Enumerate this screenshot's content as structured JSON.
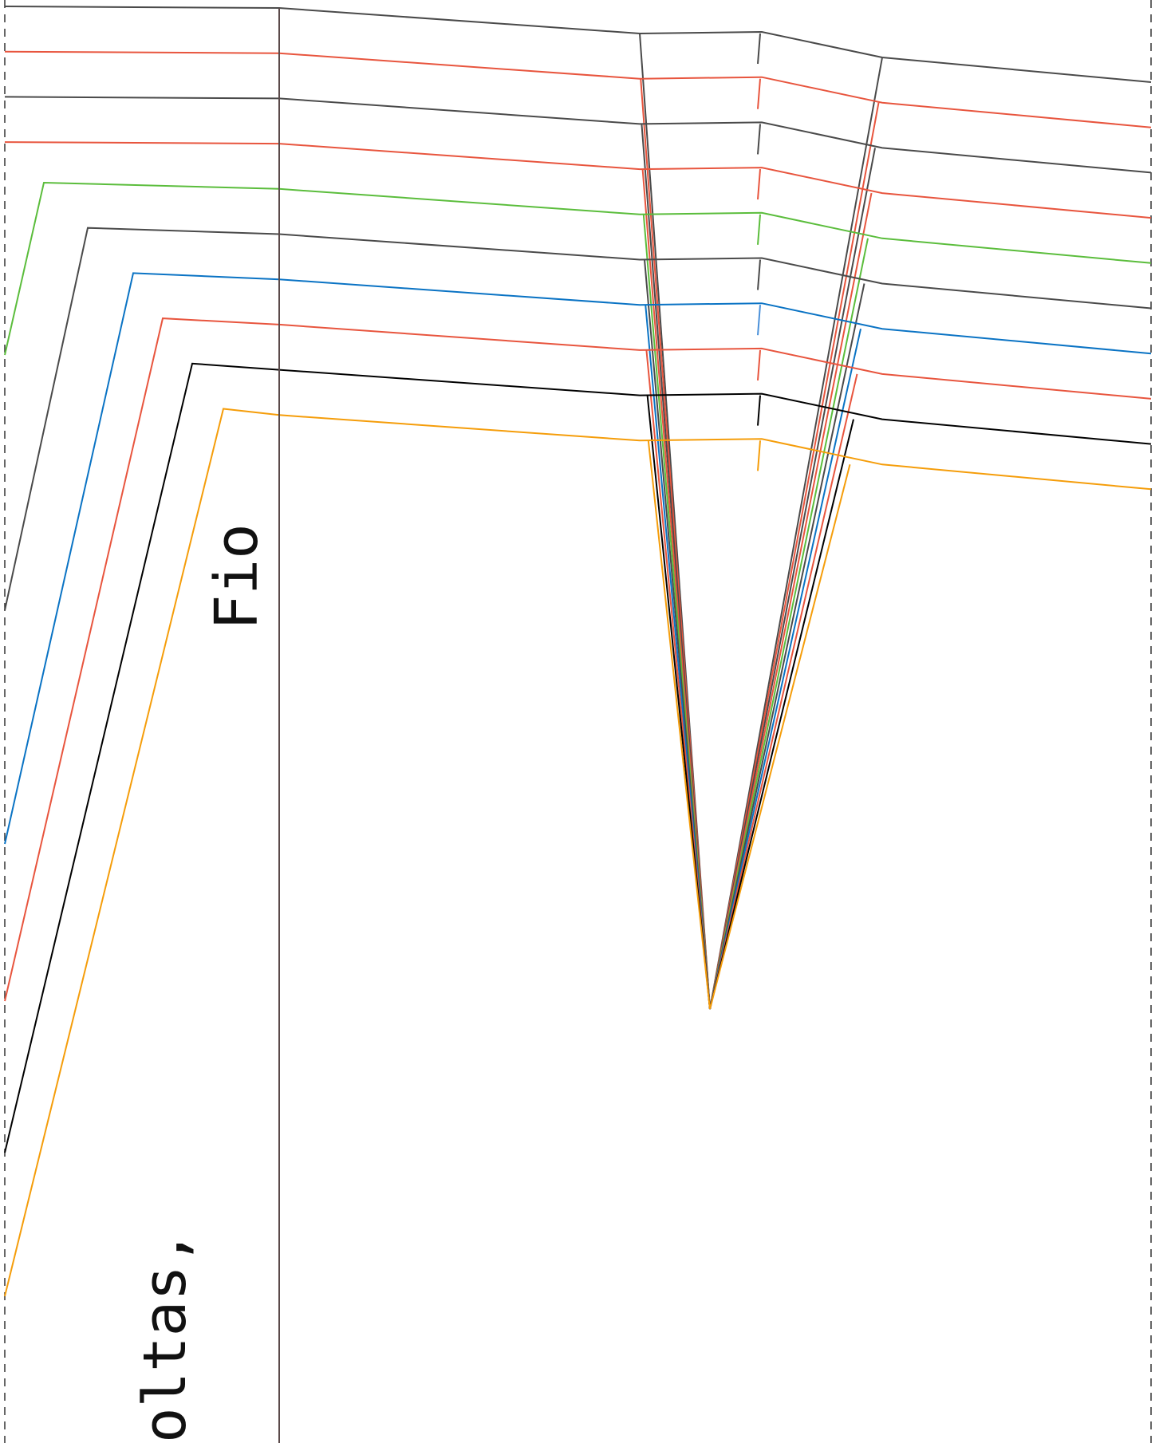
{
  "pattern": {
    "grain_label": "Fio",
    "partial_label": "oltas,",
    "size_colors": [
      "#4a4a4a",
      "#e8553e",
      "#4a4a4a",
      "#e8553e",
      "#5bbd3c",
      "#4a4a4a",
      "#0a73c4",
      "#e8553e",
      "#000000",
      "#f59d0a"
    ],
    "grain_line_color": "#5a4a4a",
    "border_color": "#333333"
  }
}
